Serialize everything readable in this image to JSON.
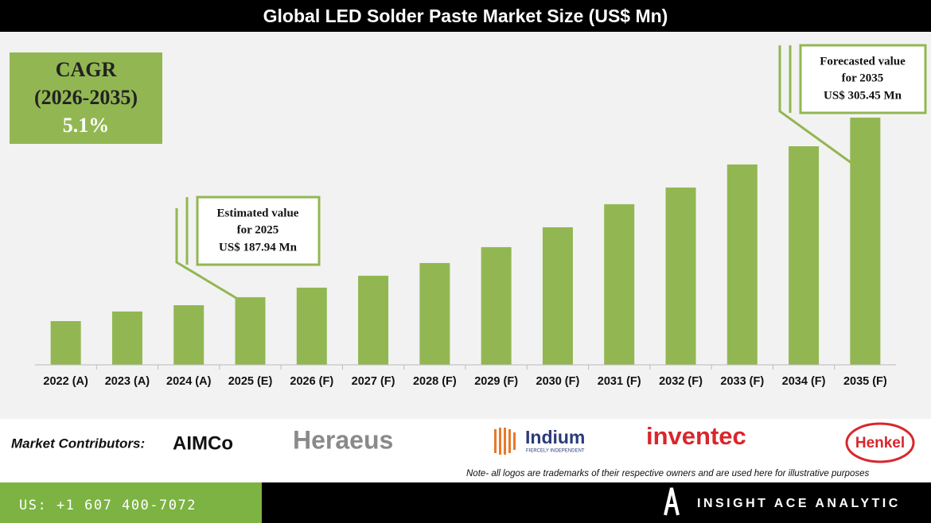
{
  "chart_data": {
    "type": "bar",
    "title": "Global LED Solder Paste Market Size (US$ Mn)",
    "categories": [
      "2022 (A)",
      "2023 (A)",
      "2024 (A)",
      "2025 (E)",
      "2026 (F)",
      "2027 (F)",
      "2028 (F)",
      "2029 (F)",
      "2030 (F)",
      "2031 (F)",
      "2032 (F)",
      "2033 (F)",
      "2034 (F)",
      "2035 (F)"
    ],
    "values": [
      172.3,
      178.6,
      182.7,
      187.94,
      194.2,
      202.0,
      210.3,
      220.7,
      233.7,
      248.8,
      259.7,
      274.8,
      286.7,
      305.45
    ],
    "value_labels": [
      null,
      null,
      null,
      "US$ 187.94 Mn",
      null,
      null,
      null,
      null,
      null,
      null,
      null,
      null,
      null,
      "US$ 305.45 Mn"
    ],
    "annotations": [
      {
        "lines": [
          "Estimated value",
          "for 2025"
        ]
      },
      {
        "lines": [
          "Forecasted value",
          "for 2035"
        ]
      }
    ],
    "color": "#92b752",
    "ylim": [
      143.7,
      351.2
    ],
    "grid": false,
    "cagr": {
      "label": "CAGR",
      "period": "(2026-2035)",
      "value": "5.1%"
    }
  },
  "contributors": {
    "label": "Market Contributors:",
    "logos": [
      "AIMCo",
      "Heraeus",
      "Indium",
      "FIERCELY INDEPENDENT",
      "inventec",
      "Henkel"
    ],
    "note": "Note- all logos are trademarks of their respective owners and are used here for illustrative purposes"
  },
  "footer": {
    "phone": "US: +1 607 400-7072",
    "brand": "INSIGHT ACE ANALYTIC"
  }
}
